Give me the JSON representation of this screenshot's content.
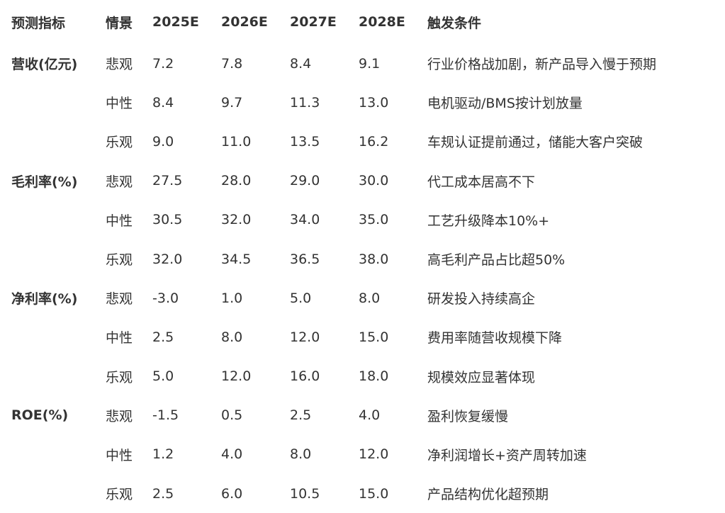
{
  "table": {
    "headers": [
      "预测指标",
      "情景",
      "2025E",
      "2026E",
      "2027E",
      "2028E",
      "触发条件"
    ],
    "rows": [
      [
        "营收(亿元)",
        "悲观",
        "7.2",
        "7.8",
        "8.4",
        "9.1",
        "行业价格战加剧，新产品导入慢于预期"
      ],
      [
        "",
        "中性",
        "8.4",
        "9.7",
        "11.3",
        "13.0",
        "电机驱动/BMS按计划放量"
      ],
      [
        "",
        "乐观",
        "9.0",
        "11.0",
        "13.5",
        "16.2",
        "车规认证提前通过，储能大客户突破"
      ],
      [
        "毛利率(%)",
        "悲观",
        "27.5",
        "28.0",
        "29.0",
        "30.0",
        "代工成本居高不下"
      ],
      [
        "",
        "中性",
        "30.5",
        "32.0",
        "34.0",
        "35.0",
        "工艺升级降本10%+"
      ],
      [
        "",
        "乐观",
        "32.0",
        "34.5",
        "36.5",
        "38.0",
        "高毛利产品占比超50%"
      ],
      [
        "净利率(%)",
        "悲观",
        "-3.0",
        "1.0",
        "5.0",
        "8.0",
        "研发投入持续高企"
      ],
      [
        "",
        "中性",
        "2.5",
        "8.0",
        "12.0",
        "15.0",
        "费用率随营收规模下降"
      ],
      [
        "",
        "乐观",
        "5.0",
        "12.0",
        "16.0",
        "18.0",
        "规模效应显著体现"
      ],
      [
        "ROE(%)",
        "悲观",
        "-1.5",
        "0.5",
        "2.5",
        "4.0",
        "盈利恢复缓慢"
      ],
      [
        "",
        "中性",
        "1.2",
        "4.0",
        "8.0",
        "12.0",
        "净利润增长+资产周转加速"
      ],
      [
        "",
        "乐观",
        "2.5",
        "6.0",
        "10.5",
        "15.0",
        "产品结构优化超预期"
      ]
    ]
  }
}
